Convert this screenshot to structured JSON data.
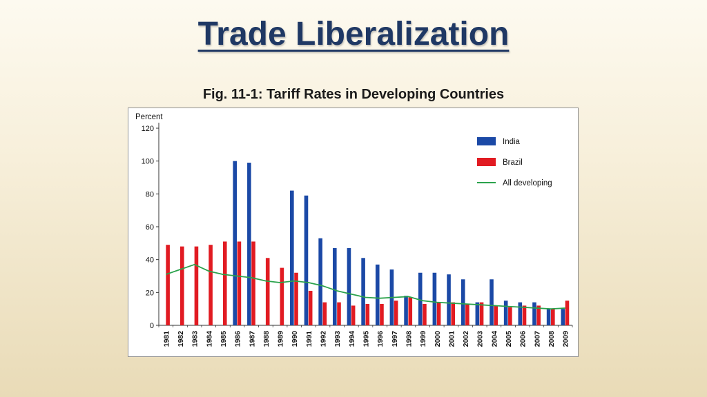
{
  "slide": {
    "title": "Trade Liberalization",
    "subtitle": "Fig. 11-1: Tariff Rates in Developing Countries"
  },
  "chart_data": {
    "type": "bar",
    "title": "Fig. 11-1: Tariff Rates in Developing Countries",
    "xlabel": "",
    "ylabel": "Percent",
    "ylim": [
      0,
      120
    ],
    "yticks": [
      0,
      20,
      40,
      60,
      80,
      100,
      120
    ],
    "grid": false,
    "legend_position": "top-right",
    "categories": [
      "1981",
      "1982",
      "1983",
      "1984",
      "1985",
      "1986",
      "1987",
      "1988",
      "1989",
      "1990",
      "1991",
      "1992",
      "1993",
      "1994",
      "1995",
      "1996",
      "1997",
      "1998",
      "1999",
      "2000",
      "2001",
      "2002",
      "2003",
      "2004",
      "2005",
      "2006",
      "2007",
      "2008",
      "2009"
    ],
    "series": [
      {
        "name": "India",
        "type": "bar",
        "color": "#1b49a6",
        "values": [
          null,
          null,
          null,
          null,
          null,
          100,
          99,
          null,
          null,
          82,
          79,
          53,
          47,
          47,
          41,
          37,
          34,
          18,
          32,
          32,
          31,
          28,
          14,
          28,
          15,
          14,
          14,
          10,
          10
        ]
      },
      {
        "name": "Brazil",
        "type": "bar",
        "color": "#e11b22",
        "values": [
          49,
          48,
          48,
          49,
          51,
          51,
          51,
          41,
          35,
          32,
          21,
          14,
          14,
          12,
          13,
          13,
          15,
          17,
          13,
          14,
          14,
          13,
          14,
          12,
          11,
          12,
          12,
          10,
          15
        ]
      },
      {
        "name": "All developing",
        "type": "line",
        "color": "#2ba24c",
        "values": [
          31,
          34,
          37,
          33,
          31,
          30,
          29,
          27,
          26,
          27,
          26,
          24,
          21,
          19,
          17,
          16.5,
          17,
          17.5,
          15,
          14,
          13.5,
          13,
          12.5,
          12,
          11.5,
          11,
          10.5,
          10,
          10.5
        ]
      }
    ],
    "axis_color": "#333333",
    "tick_label_color": "#111111"
  }
}
